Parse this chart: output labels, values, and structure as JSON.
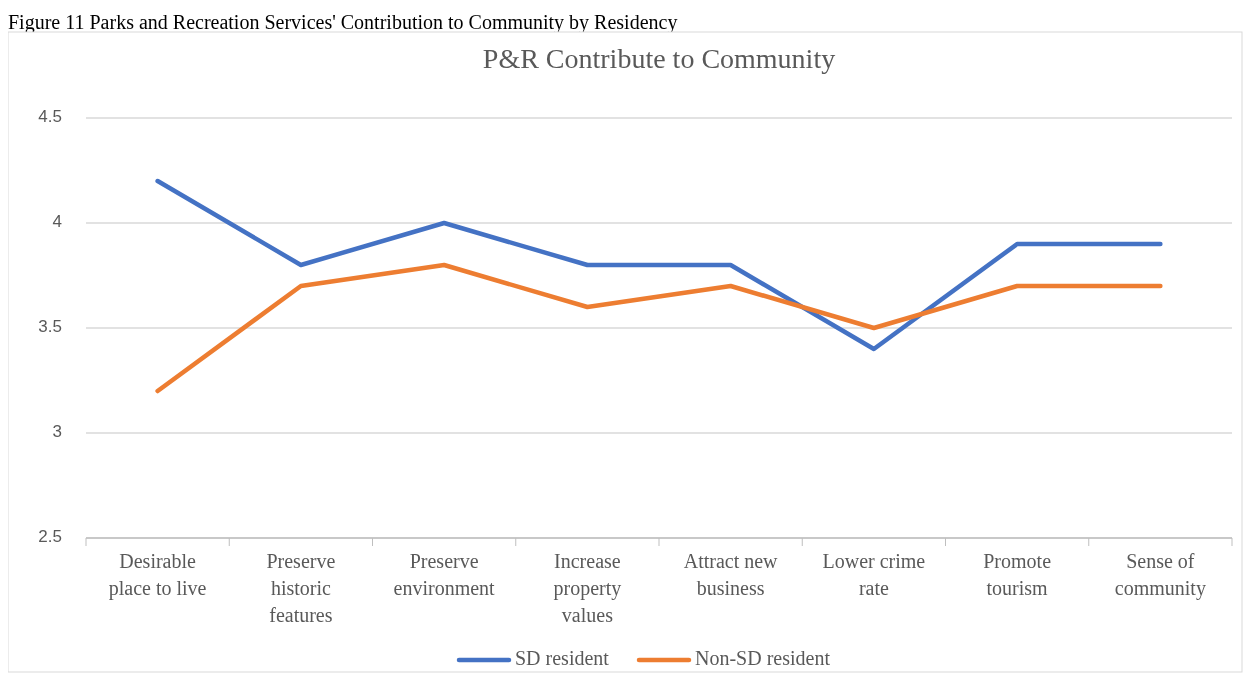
{
  "chart_data": {
    "type": "line",
    "title": "P&R Contribute to Community",
    "annotations": [
      "Figure 11 Parks and Recreation Services' Contribution to Community by Residency"
    ],
    "categories": [
      "Desirable place to live",
      "Preserve historic features",
      "Preserve environment",
      "Increase property values",
      "Attract new business",
      "Lower crime rate",
      "Promote tourism",
      "Sense of community"
    ],
    "series": [
      {
        "name": "SD resident",
        "color": "#4472c4",
        "values": [
          4.2,
          3.8,
          4.0,
          3.8,
          3.8,
          3.4,
          3.9,
          3.9
        ]
      },
      {
        "name": "Non-SD resident",
        "color": "#ed7d31",
        "values": [
          3.2,
          3.7,
          3.8,
          3.6,
          3.7,
          3.5,
          3.7,
          3.7
        ]
      }
    ],
    "ylim": [
      2.5,
      4.5
    ],
    "yticks": [
      2.5,
      3,
      3.5,
      4,
      4.5
    ],
    "grid": "y",
    "legend": "bottom",
    "marker": "none",
    "line_style": "solid"
  }
}
